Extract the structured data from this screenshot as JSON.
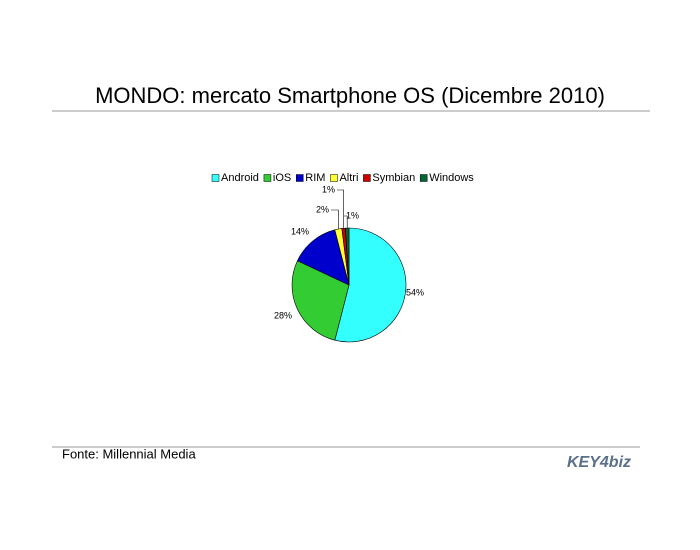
{
  "chart_data": {
    "type": "pie",
    "title": "MONDO: mercato Smartphone OS (Dicembre 2010)",
    "categories": [
      "Android",
      "iOS",
      "RIM",
      "Altri",
      "Symbian",
      "Windows"
    ],
    "values": [
      54,
      28,
      14,
      2,
      1,
      1
    ],
    "value_labels": [
      "54%",
      "28%",
      "14%",
      "2%",
      "1%",
      "1%"
    ],
    "colors": [
      "#33ffff",
      "#33cc33",
      "#0000cc",
      "#ffff33",
      "#cc0000",
      "#006633"
    ],
    "legend": "top"
  },
  "source": "Fonte: Millennial Media",
  "logo": "KEY4biz"
}
